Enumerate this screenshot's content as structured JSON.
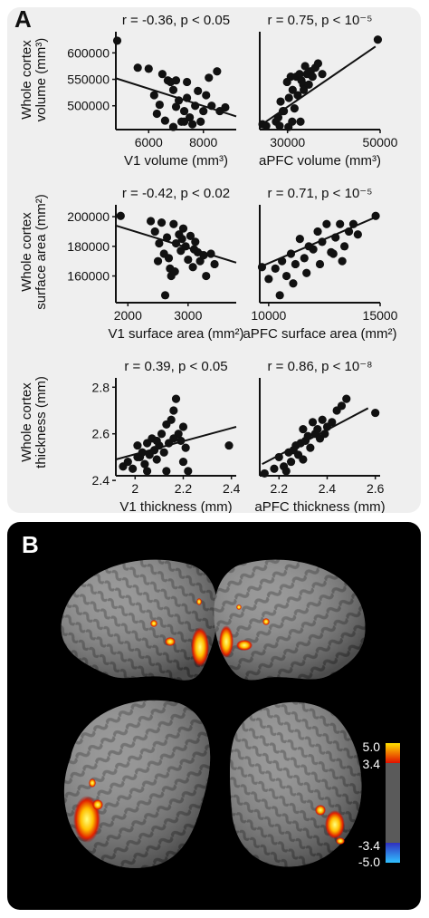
{
  "panel_a": {
    "label": "A",
    "row_ylabels": [
      [
        "Whole cortex",
        "volume (mm³)"
      ],
      [
        "Whole cortex",
        "surface area (mm²)"
      ],
      [
        "Whole cortex",
        "thickness (mm)"
      ]
    ]
  },
  "panel_b": {
    "label": "B",
    "colorbar": {
      "ticks": [
        "5.0",
        "3.4",
        "-3.4",
        "-5.0"
      ],
      "colors": [
        "#ffe000",
        "#e01000",
        "#5a5a5a",
        "#3030c0",
        "#30c0ff"
      ]
    }
  },
  "chart_data": [
    {
      "type": "scatter",
      "title": "r = -0.36, p < 0.05",
      "xlabel": "V1 volume (mm³)",
      "ylabel": "Whole cortex volume (mm³)",
      "xlim": [
        4800,
        9200
      ],
      "ylim": [
        455000,
        640000
      ],
      "xticks": [
        "6000",
        "8000"
      ],
      "yticks": [
        "500000",
        "550000",
        "600000"
      ],
      "fit": [
        [
          4800,
          552000
        ],
        [
          9200,
          480000
        ]
      ],
      "x": [
        4850,
        5600,
        6000,
        6200,
        6400,
        6500,
        6600,
        6700,
        6800,
        6900,
        7000,
        7100,
        7200,
        7300,
        7400,
        7500,
        7600,
        7700,
        7800,
        7900,
        8000,
        8100,
        8200,
        8300,
        8500,
        8600,
        8800,
        6300,
        6900,
        7400,
        7000,
        7300
      ],
      "y": [
        623000,
        572000,
        570000,
        520000,
        502000,
        560000,
        472000,
        548000,
        545000,
        530000,
        548000,
        510000,
        470000,
        490000,
        545000,
        478000,
        465000,
        500000,
        528000,
        470000,
        490000,
        520000,
        553000,
        500000,
        565000,
        490000,
        497000,
        485000,
        460000,
        515000,
        498000,
        470000
      ]
    },
    {
      "type": "scatter",
      "title": "r = 0.75, p < 10⁻⁵",
      "xlabel": "aPFC volume (mm³)",
      "ylabel": "",
      "xlim": [
        24000,
        50000
      ],
      "ylim": [
        455000,
        640000
      ],
      "xticks": [
        "30000",
        "50000"
      ],
      "yticks": [],
      "fit": [
        [
          24000,
          462000
        ],
        [
          49000,
          612000
        ]
      ],
      "x": [
        24600,
        25400,
        27500,
        28000,
        28500,
        29200,
        29900,
        30300,
        30700,
        31100,
        31500,
        31900,
        32200,
        32600,
        33000,
        33400,
        33800,
        34200,
        34600,
        35000,
        35400,
        36000,
        36600,
        37500,
        31000,
        32800,
        30200,
        29000,
        28300,
        33500,
        49500
      ],
      "y": [
        465000,
        462000,
        470000,
        478000,
        508000,
        490000,
        545000,
        515000,
        555000,
        530000,
        495000,
        555000,
        520000,
        560000,
        548000,
        540000,
        575000,
        560000,
        540000,
        565000,
        555000,
        572000,
        580000,
        560000,
        470000,
        470000,
        460000,
        490000,
        462000,
        530000,
        625000
      ]
    },
    {
      "type": "scatter",
      "title": "r = -0.42, p < 0.02",
      "xlabel": "V1 surface area (mm²)",
      "ylabel": "Whole cortex surface area (mm²)",
      "xlim": [
        1800,
        3800
      ],
      "ylim": [
        142000,
        208000
      ],
      "xticks": [
        "2000",
        "3000"
      ],
      "yticks": [
        "160000",
        "180000",
        "200000"
      ],
      "fit": [
        [
          1800,
          194000
        ],
        [
          3800,
          169000
        ]
      ],
      "x": [
        1880,
        2380,
        2450,
        2520,
        2560,
        2600,
        2650,
        2680,
        2720,
        2760,
        2800,
        2850,
        2880,
        2920,
        2960,
        3000,
        3040,
        3080,
        3120,
        3160,
        3200,
        3260,
        3300,
        3380,
        3440,
        2500,
        2700,
        2900,
        3100,
        2620,
        2780
      ],
      "y": [
        200500,
        197000,
        190000,
        182000,
        196000,
        175000,
        186000,
        172000,
        160000,
        195000,
        182000,
        188000,
        177000,
        192000,
        180000,
        171000,
        187000,
        166000,
        183000,
        176000,
        170000,
        174000,
        160000,
        175000,
        168000,
        170000,
        165000,
        185000,
        178000,
        147000,
        163000
      ]
    },
    {
      "type": "scatter",
      "title": "r = 0.71, p < 10⁻⁵",
      "xlabel": "aPFC surface area (mm²)",
      "ylabel": "",
      "xlim": [
        9600,
        15000
      ],
      "ylim": [
        142000,
        208000
      ],
      "xticks": [
        "10000",
        "15000"
      ],
      "yticks": [],
      "fit": [
        [
          9600,
          166000
        ],
        [
          14700,
          199000
        ]
      ],
      "x": [
        9700,
        10000,
        10300,
        10600,
        10800,
        11000,
        11200,
        11400,
        11600,
        11800,
        12000,
        12200,
        12400,
        12600,
        12800,
        13000,
        13200,
        13400,
        13600,
        13800,
        14000,
        14800,
        11100,
        11700,
        12300,
        12900,
        10500,
        13300
      ],
      "y": [
        166000,
        158000,
        165000,
        170000,
        160000,
        175000,
        168000,
        185000,
        172000,
        180000,
        178000,
        190000,
        183000,
        195000,
        176000,
        186000,
        195000,
        180000,
        190000,
        195000,
        188000,
        200500,
        155000,
        162000,
        168000,
        175000,
        147000,
        170000
      ]
    },
    {
      "type": "scatter",
      "title": "r = 0.39, p < 0.05",
      "xlabel": "V1 thickness (mm)",
      "ylabel": "Whole cortex thickness (mm)",
      "xlim": [
        1.92,
        2.42
      ],
      "ylim": [
        2.42,
        2.84
      ],
      "xticks": [
        "2",
        "2.2",
        "2.4"
      ],
      "yticks": [
        "2.4",
        "2.6",
        "2.8"
      ],
      "fit": [
        [
          1.92,
          2.49
        ],
        [
          2.42,
          2.63
        ]
      ],
      "x": [
        1.95,
        1.97,
        1.99,
        2.01,
        2.02,
        2.03,
        2.04,
        2.05,
        2.06,
        2.07,
        2.08,
        2.09,
        2.1,
        2.11,
        2.12,
        2.13,
        2.14,
        2.15,
        2.16,
        2.17,
        2.18,
        2.19,
        2.2,
        2.21,
        2.22,
        2.39,
        2.05,
        2.13,
        2.16,
        2.09,
        2.01,
        2.2
      ],
      "y": [
        2.46,
        2.48,
        2.45,
        2.55,
        2.5,
        2.52,
        2.47,
        2.56,
        2.51,
        2.58,
        2.53,
        2.49,
        2.55,
        2.6,
        2.52,
        2.64,
        2.56,
        2.66,
        2.7,
        2.75,
        2.6,
        2.57,
        2.48,
        2.54,
        2.44,
        2.55,
        2.44,
        2.44,
        2.58,
        2.57,
        2.5,
        2.63
      ]
    },
    {
      "type": "scatter",
      "title": "r = 0.86, p < 10⁻⁸",
      "xlabel": "aPFC thickness (mm)",
      "ylabel": "",
      "xlim": [
        2.12,
        2.62
      ],
      "ylim": [
        2.42,
        2.84
      ],
      "xticks": [
        "2.2",
        "2.4",
        "2.6"
      ],
      "yticks": [],
      "fit": [
        [
          2.13,
          2.47
        ],
        [
          2.57,
          2.71
        ]
      ],
      "x": [
        2.14,
        2.18,
        2.2,
        2.22,
        2.24,
        2.25,
        2.27,
        2.28,
        2.29,
        2.3,
        2.31,
        2.32,
        2.33,
        2.34,
        2.35,
        2.36,
        2.37,
        2.38,
        2.39,
        2.4,
        2.42,
        2.44,
        2.46,
        2.48,
        2.6,
        2.23,
        2.3,
        2.26
      ],
      "y": [
        2.43,
        2.45,
        2.5,
        2.46,
        2.52,
        2.48,
        2.55,
        2.51,
        2.56,
        2.62,
        2.57,
        2.59,
        2.54,
        2.65,
        2.6,
        2.62,
        2.58,
        2.66,
        2.6,
        2.63,
        2.65,
        2.7,
        2.72,
        2.75,
        2.69,
        2.44,
        2.49,
        2.53
      ]
    }
  ]
}
